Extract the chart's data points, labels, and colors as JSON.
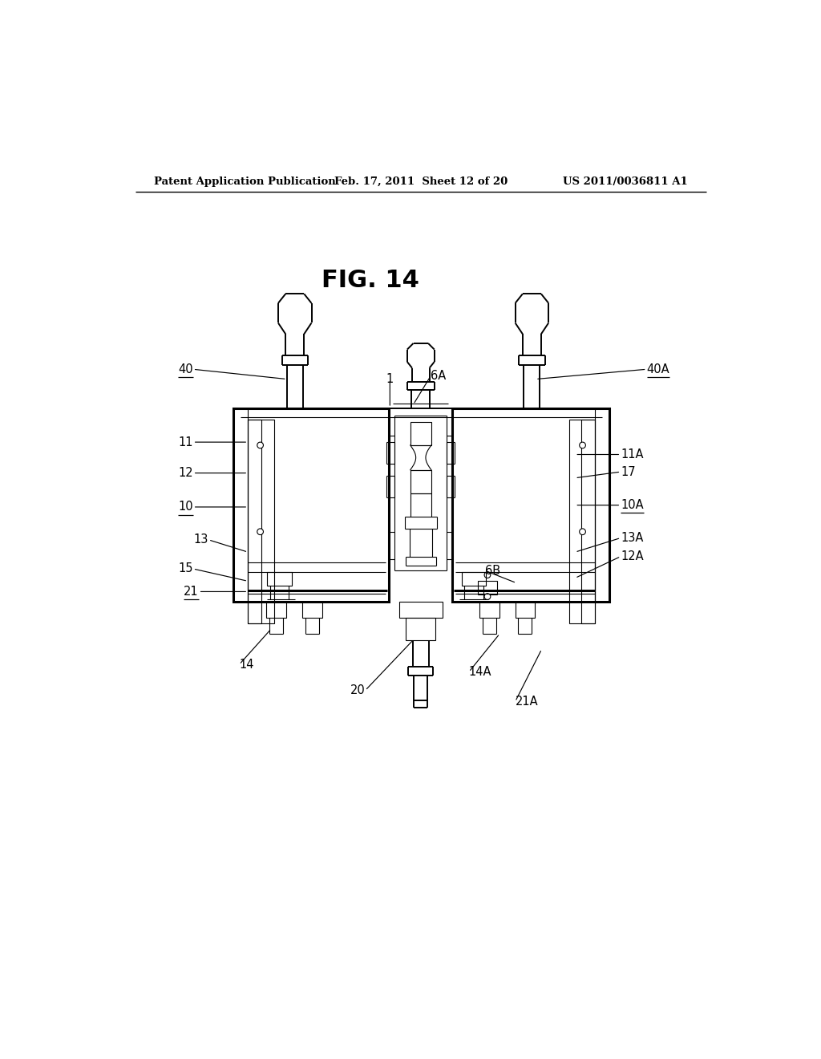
{
  "bg_color": "#ffffff",
  "lc": "#000000",
  "header_left": "Patent Application Publication",
  "header_mid": "Feb. 17, 2011  Sheet 12 of 20",
  "header_right": "US 2011/0036811 A1",
  "fig_label": "FIG. 14",
  "underlined": [
    "40",
    "10",
    "21",
    "40A",
    "10A"
  ]
}
